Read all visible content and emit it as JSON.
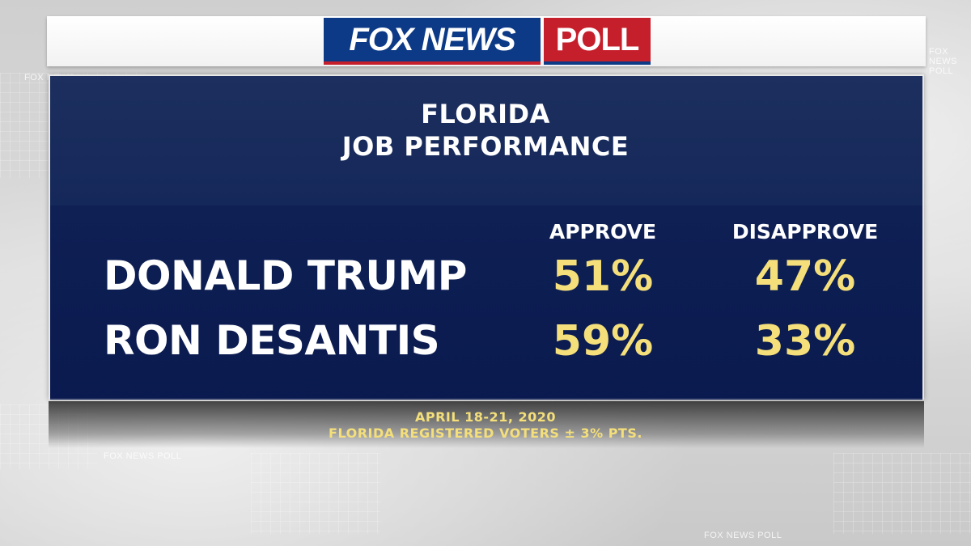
{
  "logo": {
    "fox_news": "FOX NEWS",
    "poll": "POLL"
  },
  "title": {
    "line1": "FLORIDA",
    "line2": "JOB PERFORMANCE"
  },
  "columns": {
    "approve": "APPROVE",
    "disapprove": "DISAPPROVE"
  },
  "rows": [
    {
      "name": "DONALD TRUMP",
      "approve": "51%",
      "disapprove": "47%"
    },
    {
      "name": "RON DESANTIS",
      "approve": "59%",
      "disapprove": "33%"
    }
  ],
  "footer": {
    "date": "APRIL 18-21, 2020",
    "sample": "FLORIDA REGISTERED VOTERS ± 3% PTS."
  },
  "background_tags": [
    "FOX NEWS POLL",
    "FOX NEWS POLL",
    "FOX NEWS POLL",
    "FOX NEWS"
  ],
  "colors": {
    "panel_navy": "#15285a",
    "value_yellow": "#f4df7a",
    "fox_blue": "#0d3a86",
    "poll_red": "#c51f2b"
  }
}
